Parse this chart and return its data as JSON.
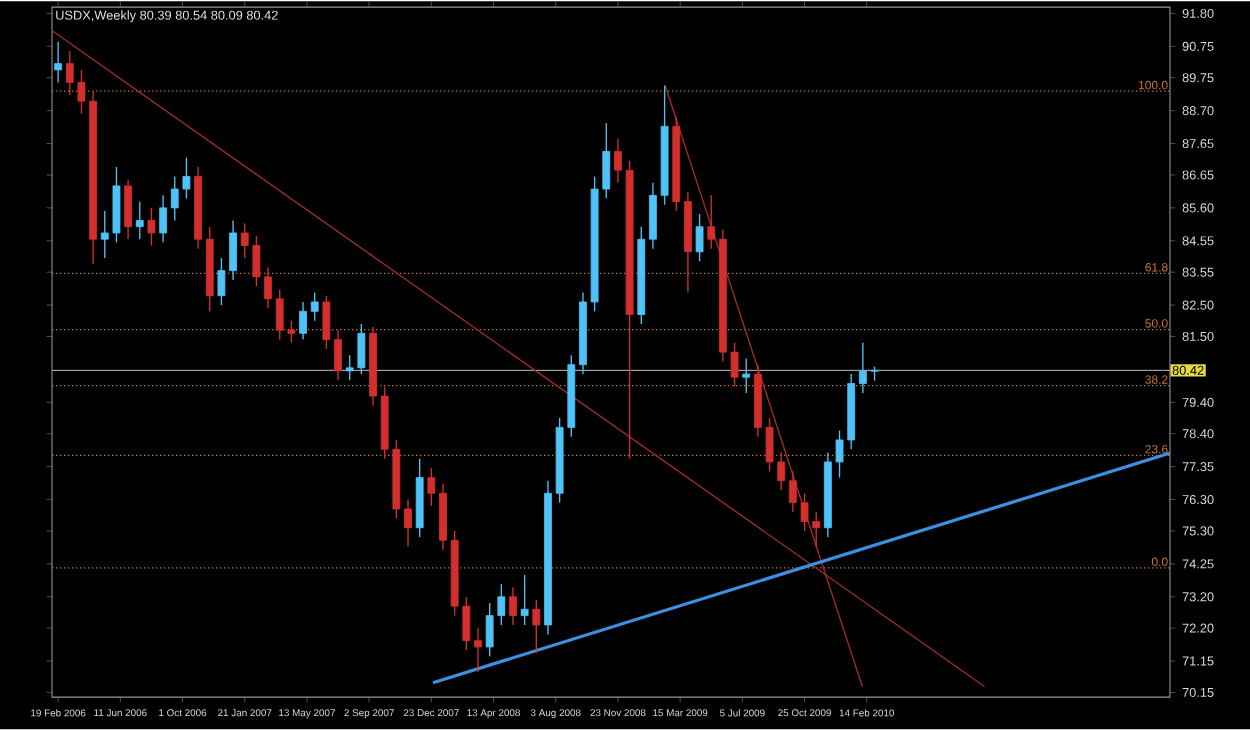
{
  "chart_data": {
    "type": "candlestick",
    "title": "USDX,Weekly  80.39 80.54 80.09 80.42",
    "x": [
      "2006-02-19",
      "2006-03-12",
      "2006-04-02",
      "2006-04-23",
      "2006-05-14",
      "2006-06-04",
      "2006-06-25",
      "2006-07-16",
      "2006-08-06",
      "2006-08-27",
      "2006-09-17",
      "2006-10-08",
      "2006-10-29",
      "2006-11-19",
      "2006-12-10",
      "2006-12-31",
      "2007-01-21",
      "2007-02-11",
      "2007-03-04",
      "2007-03-25",
      "2007-04-15",
      "2007-05-06",
      "2007-05-27",
      "2007-06-17",
      "2007-07-08",
      "2007-07-29",
      "2007-08-19",
      "2007-09-09",
      "2007-09-30",
      "2007-10-21",
      "2007-11-11",
      "2007-12-02",
      "2007-12-23",
      "2008-01-13",
      "2008-02-03",
      "2008-02-24",
      "2008-03-16",
      "2008-04-06",
      "2008-04-27",
      "2008-05-18",
      "2008-06-08",
      "2008-06-29",
      "2008-07-20",
      "2008-08-10",
      "2008-08-31",
      "2008-09-21",
      "2008-10-12",
      "2008-11-02",
      "2008-11-23",
      "2008-12-14",
      "2009-01-04",
      "2009-01-25",
      "2009-02-15",
      "2009-03-08",
      "2009-03-29",
      "2009-04-19",
      "2009-05-10",
      "2009-05-31",
      "2009-06-21",
      "2009-07-12",
      "2009-08-02",
      "2009-08-23",
      "2009-09-13",
      "2009-10-04",
      "2009-10-25",
      "2009-11-15",
      "2009-12-06",
      "2009-12-27",
      "2010-01-17",
      "2010-02-07",
      "2010-02-28"
    ],
    "ohlc": [
      [
        90.0,
        90.9,
        89.6,
        90.2
      ],
      [
        90.2,
        90.6,
        89.2,
        89.6
      ],
      [
        89.6,
        90.0,
        88.6,
        89.0
      ],
      [
        89.0,
        89.3,
        83.8,
        84.6
      ],
      [
        84.6,
        85.5,
        84.0,
        84.8
      ],
      [
        84.8,
        86.9,
        84.5,
        86.3
      ],
      [
        86.3,
        86.5,
        84.6,
        85.0
      ],
      [
        85.0,
        85.8,
        84.6,
        85.2
      ],
      [
        85.2,
        85.6,
        84.4,
        84.8
      ],
      [
        84.8,
        86.0,
        84.5,
        85.6
      ],
      [
        85.6,
        86.6,
        85.2,
        86.2
      ],
      [
        86.2,
        87.2,
        85.9,
        86.6
      ],
      [
        86.6,
        86.9,
        84.3,
        84.6
      ],
      [
        84.6,
        85.0,
        82.3,
        82.8
      ],
      [
        82.8,
        84.0,
        82.5,
        83.6
      ],
      [
        83.6,
        85.2,
        83.3,
        84.8
      ],
      [
        84.8,
        85.1,
        84.0,
        84.4
      ],
      [
        84.4,
        84.7,
        83.1,
        83.4
      ],
      [
        83.4,
        83.7,
        82.4,
        82.7
      ],
      [
        82.7,
        83.0,
        81.4,
        81.7
      ],
      [
        81.7,
        82.0,
        81.3,
        81.6
      ],
      [
        81.6,
        82.6,
        81.4,
        82.3
      ],
      [
        82.3,
        82.9,
        82.0,
        82.6
      ],
      [
        82.6,
        82.8,
        81.1,
        81.4
      ],
      [
        81.4,
        81.7,
        80.1,
        80.4
      ],
      [
        80.4,
        80.9,
        80.1,
        80.5
      ],
      [
        80.5,
        81.9,
        80.3,
        81.6
      ],
      [
        81.6,
        81.8,
        79.3,
        79.6
      ],
      [
        79.6,
        79.9,
        77.6,
        77.9
      ],
      [
        77.9,
        78.2,
        75.7,
        76.0
      ],
      [
        76.0,
        76.3,
        74.8,
        75.4
      ],
      [
        75.4,
        77.6,
        75.1,
        77.0
      ],
      [
        77.0,
        77.3,
        76.1,
        76.5
      ],
      [
        76.5,
        76.8,
        74.7,
        75.0
      ],
      [
        75.0,
        75.3,
        72.6,
        72.9
      ],
      [
        72.9,
        73.2,
        71.5,
        71.8
      ],
      [
        71.8,
        72.2,
        70.8,
        71.6
      ],
      [
        71.6,
        73.0,
        71.3,
        72.6
      ],
      [
        72.6,
        73.6,
        72.3,
        73.2
      ],
      [
        73.2,
        73.5,
        72.3,
        72.6
      ],
      [
        72.6,
        73.9,
        72.3,
        72.8
      ],
      [
        72.8,
        73.1,
        71.4,
        72.3
      ],
      [
        72.3,
        76.9,
        72.0,
        76.5
      ],
      [
        76.5,
        78.9,
        76.2,
        78.6
      ],
      [
        78.6,
        80.9,
        78.3,
        80.6
      ],
      [
        80.6,
        82.9,
        80.3,
        82.6
      ],
      [
        82.6,
        86.6,
        82.3,
        86.2
      ],
      [
        86.2,
        88.3,
        85.9,
        87.4
      ],
      [
        87.4,
        87.8,
        86.4,
        86.8
      ],
      [
        86.8,
        87.1,
        77.6,
        82.2
      ],
      [
        82.2,
        85.0,
        81.9,
        84.6
      ],
      [
        84.6,
        86.4,
        84.3,
        86.0
      ],
      [
        86.0,
        89.5,
        85.7,
        88.2
      ],
      [
        88.2,
        88.5,
        85.5,
        85.8
      ],
      [
        85.8,
        86.1,
        82.9,
        84.2
      ],
      [
        84.2,
        85.4,
        83.9,
        85.0
      ],
      [
        85.0,
        86.0,
        84.3,
        84.6
      ],
      [
        84.6,
        84.9,
        80.7,
        81.0
      ],
      [
        81.0,
        81.3,
        79.9,
        80.2
      ],
      [
        80.2,
        80.8,
        79.7,
        80.3
      ],
      [
        80.3,
        80.6,
        78.3,
        78.6
      ],
      [
        78.6,
        78.9,
        77.2,
        77.5
      ],
      [
        77.5,
        77.8,
        76.6,
        76.9
      ],
      [
        76.9,
        77.2,
        75.9,
        76.2
      ],
      [
        76.2,
        76.5,
        75.3,
        75.6
      ],
      [
        75.6,
        75.9,
        74.8,
        75.4
      ],
      [
        75.4,
        77.8,
        75.1,
        77.5
      ],
      [
        77.5,
        78.5,
        77.0,
        78.2
      ],
      [
        78.2,
        80.3,
        77.9,
        80.0
      ],
      [
        80.0,
        81.3,
        79.7,
        80.4
      ],
      [
        80.39,
        80.54,
        80.09,
        80.42
      ]
    ],
    "colors": [
      "#4fc3f7",
      "#d32f2f",
      "#d32f2f",
      "#d32f2f",
      "#4fc3f7",
      "#4fc3f7",
      "#d32f2f",
      "#4fc3f7",
      "#d32f2f",
      "#4fc3f7",
      "#4fc3f7",
      "#4fc3f7",
      "#d32f2f",
      "#d32f2f",
      "#4fc3f7",
      "#4fc3f7",
      "#d32f2f",
      "#d32f2f",
      "#d32f2f",
      "#d32f2f",
      "#d32f2f",
      "#4fc3f7",
      "#4fc3f7",
      "#d32f2f",
      "#d32f2f",
      "#4fc3f7",
      "#4fc3f7",
      "#d32f2f",
      "#d32f2f",
      "#d32f2f",
      "#d32f2f",
      "#4fc3f7",
      "#d32f2f",
      "#d32f2f",
      "#d32f2f",
      "#d32f2f",
      "#d32f2f",
      "#4fc3f7",
      "#4fc3f7",
      "#d32f2f",
      "#4fc3f7",
      "#d32f2f",
      "#4fc3f7",
      "#4fc3f7",
      "#4fc3f7",
      "#4fc3f7",
      "#4fc3f7",
      "#4fc3f7",
      "#d32f2f",
      "#d32f2f",
      "#4fc3f7",
      "#4fc3f7",
      "#4fc3f7",
      "#d32f2f",
      "#d32f2f",
      "#4fc3f7",
      "#d32f2f",
      "#d32f2f",
      "#d32f2f",
      "#4fc3f7",
      "#d32f2f",
      "#d32f2f",
      "#d32f2f",
      "#d32f2f",
      "#d32f2f",
      "#d32f2f",
      "#4fc3f7",
      "#4fc3f7",
      "#4fc3f7",
      "#4fc3f7",
      "#4fc3f7"
    ],
    "series": [
      {
        "type": "line",
        "color": "#a52a2a",
        "x": [
          "2006-02-09",
          "2010-09-14"
        ],
        "values": [
          91.24,
          70.34
        ]
      },
      {
        "type": "line",
        "color": "#a52a2a",
        "x": [
          "2009-02-16",
          "2010-02-06"
        ],
        "values": [
          89.5,
          70.34
        ]
      },
      {
        "type": "line",
        "color": "#3d8fe0",
        "x": [
          "2007-12-26",
          "2011-08-14"
        ],
        "values": [
          70.46,
          77.78
        ]
      }
    ],
    "xlim": [
      "2006-02-08",
      "2011-08-14"
    ],
    "xticks": [
      {
        "value": "2006-02-19",
        "label": "19 Feb 2006"
      },
      {
        "value": "2006-06-11",
        "label": "11 Jun 2006"
      },
      {
        "value": "2006-10-01",
        "label": "1 Oct 2006"
      },
      {
        "value": "2007-01-21",
        "label": "21 Jan 2007"
      },
      {
        "value": "2007-05-13",
        "label": "13 May 2007"
      },
      {
        "value": "2007-09-02",
        "label": "2 Sep 2007"
      },
      {
        "value": "2007-12-23",
        "label": "23 Dec 2007"
      },
      {
        "value": "2008-04-13",
        "label": "13 Apr 2008"
      },
      {
        "value": "2008-08-03",
        "label": "3 Aug 2008"
      },
      {
        "value": "2008-11-23",
        "label": "23 Nov 2008"
      },
      {
        "value": "2009-03-15",
        "label": "15 Mar 2009"
      },
      {
        "value": "2009-07-05",
        "label": "5 Jul 2009"
      },
      {
        "value": "2009-10-25",
        "label": "25 Oct 2009"
      },
      {
        "value": "2010-02-14",
        "label": "14 Feb 2010"
      }
    ],
    "ylim": [
      70.0,
      92.0
    ],
    "yticks": [
      {
        "value": 91.8,
        "label": "91.80"
      },
      90.75,
      {
        "value": 89.75,
        "label": "89.75"
      },
      {
        "value": 88.7,
        "label": "88.70"
      },
      87.65,
      {
        "value": 86.65,
        "label": "86.65"
      },
      {
        "value": 85.6,
        "label": "85.60"
      },
      84.55,
      83.55,
      {
        "value": 82.5,
        "label": "82.50"
      },
      {
        "value": 81.5,
        "label": "81.50"
      },
      {
        "value": 79.4,
        "label": "79.40"
      },
      {
        "value": 78.4,
        "label": "78.40"
      },
      77.35,
      {
        "value": 76.3,
        "label": "76.30"
      },
      {
        "value": 75.3,
        "label": "75.30"
      },
      74.25,
      {
        "value": 73.2,
        "label": "73.20"
      },
      {
        "value": 72.2,
        "label": "72.20"
      },
      71.15,
      70.15
    ],
    "ref_lines": [
      {
        "axis": "y",
        "value": 89.32,
        "color": "#c87533",
        "line_style": "dotted"
      },
      {
        "axis": "y",
        "value": 83.51,
        "color": "#c87533",
        "line_style": "dotted"
      },
      {
        "axis": "y",
        "value": 81.72,
        "color": "#c87533",
        "line_style": "dotted"
      },
      {
        "axis": "y",
        "value": 79.93,
        "color": "#c87533",
        "line_style": "dotted"
      },
      {
        "axis": "y",
        "value": 77.71,
        "color": "#c87533",
        "line_style": "dotted"
      },
      {
        "axis": "y",
        "value": 74.12,
        "color": "#c87533",
        "line_style": "dotted"
      },
      {
        "axis": "y",
        "value": 80.42,
        "label": "80.42",
        "color": "#a0a0a0",
        "line_style": "solid"
      }
    ],
    "annotations": [
      {
        "text": "100.0",
        "y": 89.32
      },
      {
        "text": "61.8",
        "y": 83.51
      },
      {
        "text": "50.0",
        "y": 81.72
      },
      {
        "text": "38.2",
        "y": 79.93
      },
      {
        "text": "23.6",
        "y": 77.71
      },
      {
        "text": "0.0",
        "y": 74.12
      }
    ]
  }
}
